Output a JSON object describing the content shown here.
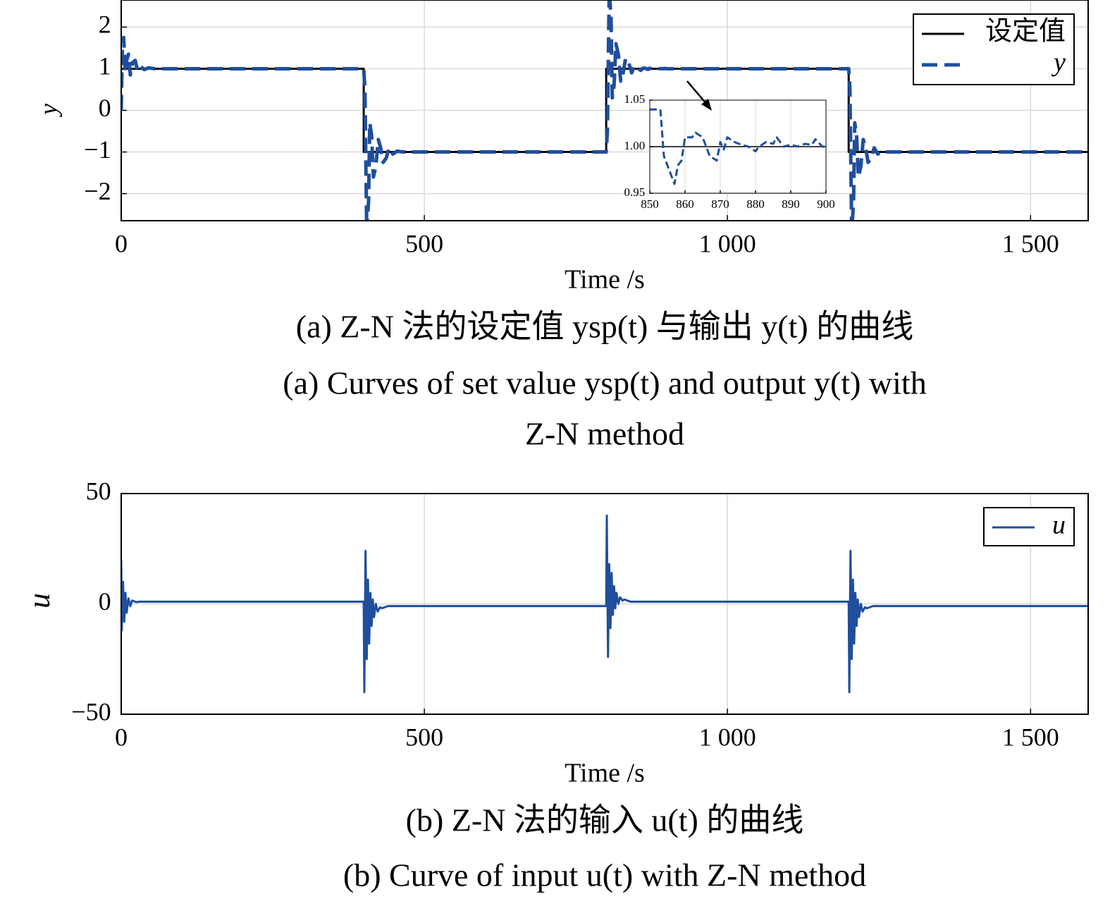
{
  "chart_data": [
    {
      "type": "line",
      "xlabel": "Time /s",
      "ylabel": "y",
      "xlim": [
        0,
        1595
      ],
      "ylim": [
        -2.65,
        2.65
      ],
      "xticks": [
        0,
        500,
        {
          "value": 1000,
          "label": "1 000"
        },
        {
          "value": 1500,
          "label": "1 500"
        }
      ],
      "yticks": [
        {
          "value": -2,
          "label": "−2"
        },
        {
          "value": -1,
          "label": "−1"
        },
        0,
        1,
        2
      ],
      "grid": true,
      "legend": "upper right",
      "series": [
        {
          "name": "设定值",
          "color": "#000000",
          "line_style": "solid",
          "x": [
            0,
            400,
            400,
            800,
            800,
            1200,
            1200,
            1595
          ],
          "values": [
            1,
            1,
            -1,
            -1,
            1,
            1,
            -1,
            -1
          ]
        },
        {
          "name": "y",
          "color": "#1f4e9c",
          "line_style": "dashed",
          "x": [
            0,
            2,
            4,
            7,
            9,
            12,
            15,
            19,
            23,
            27,
            32,
            38,
            45,
            55,
            400,
            402,
            405,
            408,
            410,
            413,
            416,
            420,
            424,
            428,
            432,
            437,
            442,
            448,
            455,
            465,
            800,
            802,
            805,
            808,
            810,
            813,
            816,
            820,
            824,
            828,
            832,
            837,
            842,
            846,
            850,
            853,
            854,
            856,
            857,
            858,
            859,
            860,
            862,
            863,
            865,
            866,
            867,
            869,
            870,
            871,
            872,
            874,
            876,
            878,
            880,
            881,
            883,
            885,
            886,
            888,
            890,
            892,
            894,
            896,
            897,
            899,
            900,
            1200,
            1202,
            1205,
            1208,
            1210,
            1213,
            1216,
            1220,
            1224,
            1228,
            1232,
            1237,
            1242,
            1248,
            1255,
            1265,
            1595
          ],
          "values": [
            0,
            1.6,
            1.75,
            0.9,
            1.2,
            1.35,
            0.85,
            1.15,
            1.2,
            0.95,
            1.05,
            0.98,
            1.02,
            1.0,
            1.0,
            0.5,
            -2.9,
            -2.2,
            -0.3,
            -0.6,
            -1.6,
            -1.35,
            -0.7,
            -0.9,
            -1.25,
            -1.15,
            -0.9,
            -1.05,
            -0.98,
            -1.0,
            -1.0,
            -0.5,
            2.9,
            2.2,
            0.3,
            0.6,
            1.6,
            1.35,
            0.7,
            0.9,
            1.25,
            1.15,
            0.9,
            1.05,
            1.04,
            1.04,
            0.99,
            0.97,
            0.96,
            0.98,
            0.985,
            1.01,
            1.01,
            1.015,
            1.01,
            1.0,
            0.99,
            0.985,
            1.005,
            0.997,
            1.01,
            1.005,
            1.002,
            1.0,
            0.995,
            1.0,
            1.005,
            1.003,
            1.01,
            1.0,
            1.002,
            1.0,
            1.003,
            1.002,
            1.008,
            1.0,
            1.0,
            1.0,
            0.5,
            -2.9,
            -2.2,
            -0.3,
            -0.6,
            -1.6,
            -1.35,
            -0.7,
            -0.9,
            -1.25,
            -1.15,
            -0.9,
            -1.05,
            -0.98,
            -1.0,
            -1.0
          ]
        }
      ],
      "caption": [
        "(a) Z-N 法的设定值 ysp(t) 与输出 y(t) 的曲线",
        "(a) Curves of set value ysp(t) and output y(t) with",
        "Z-N method"
      ]
    },
    {
      "type": "line",
      "xlim": [
        850,
        900
      ],
      "ylim": [
        0.95,
        1.05
      ],
      "xticks": [
        850,
        860,
        870,
        880,
        890,
        900
      ],
      "yticks": [
        0.95,
        {
          "value": 1,
          "label": "1.00"
        },
        1.05
      ],
      "grid": true,
      "series": [
        {
          "color": "#000000",
          "line_style": "solid",
          "x": [
            850,
            900
          ],
          "values": [
            1,
            1
          ]
        },
        {
          "color": "#1f4e9c",
          "line_style": "dashed",
          "x": [
            850,
            853,
            854,
            856,
            857,
            858,
            859,
            860,
            862,
            863,
            865,
            866,
            867,
            869,
            870,
            871,
            872,
            874,
            876,
            878,
            880,
            881,
            883,
            885,
            886,
            888,
            890,
            892,
            894,
            896,
            897,
            899,
            900
          ],
          "values": [
            1.04,
            1.04,
            0.99,
            0.97,
            0.96,
            0.98,
            0.985,
            1.01,
            1.01,
            1.015,
            1.01,
            1.0,
            0.99,
            0.985,
            1.005,
            0.997,
            1.01,
            1.005,
            1.002,
            1.0,
            0.995,
            1.0,
            1.005,
            1.003,
            1.01,
            1.0,
            1.002,
            1.0,
            1.003,
            1.002,
            1.008,
            1.0,
            1.0
          ]
        }
      ]
    },
    {
      "type": "line",
      "xlabel": "Time /s",
      "ylabel": "u",
      "xlim": [
        0,
        1595
      ],
      "ylim": [
        -50,
        50
      ],
      "xticks": [
        0,
        500,
        {
          "value": 1000,
          "label": "1 000"
        },
        {
          "value": 1500,
          "label": "1 500"
        }
      ],
      "yticks": [
        {
          "value": -50,
          "label": "−50"
        },
        0,
        50
      ],
      "grid": true,
      "legend": "upper right",
      "series": [
        {
          "name": "u",
          "color": "#1f4e9c",
          "line_style": "solid",
          "x": [
            0,
            1,
            3,
            5,
            7,
            9,
            12,
            15,
            18,
            25,
            30,
            400,
            401,
            403,
            405,
            407,
            409,
            411,
            413,
            415,
            417,
            420,
            423,
            427,
            430,
            440,
            800,
            801,
            803,
            805,
            807,
            809,
            811,
            813,
            815,
            817,
            820,
            823,
            827,
            830,
            840,
            1200,
            1201,
            1203,
            1205,
            1207,
            1209,
            1211,
            1213,
            1215,
            1217,
            1220,
            1223,
            1227,
            1230,
            1240,
            1595
          ],
          "values": [
            20,
            -12,
            10,
            -8,
            5,
            -4,
            2.5,
            -1,
            1.5,
            0.8,
            1,
            1,
            -40,
            24,
            -25,
            11,
            -18,
            5,
            -10,
            2,
            -6,
            0,
            -3.5,
            -1.5,
            -2,
            -1,
            -1,
            40,
            -24,
            18,
            -11,
            14,
            -5,
            8,
            -2,
            5,
            0,
            3,
            1.5,
            2,
            1,
            1,
            -40,
            24,
            -25,
            11,
            -18,
            5,
            -10,
            2,
            -6,
            0,
            -3.5,
            -1.5,
            -2,
            -1,
            -1
          ]
        }
      ],
      "caption": [
        "(b) Z-N 法的输入 u(t) 的曲线",
        "(b) Curve of input u(t) with Z-N method"
      ]
    }
  ]
}
